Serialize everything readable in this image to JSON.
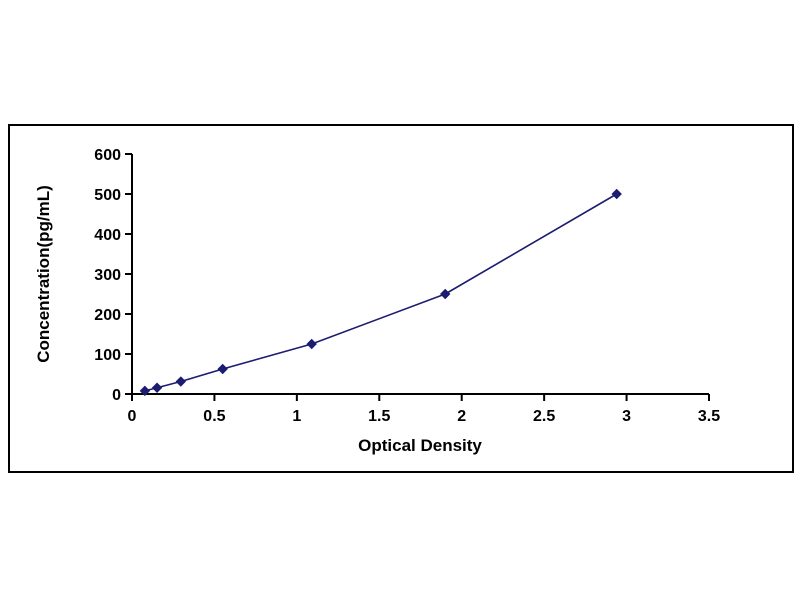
{
  "page": {
    "background": "#ffffff"
  },
  "chart_data": {
    "type": "line",
    "title": "",
    "xlabel": "Optical Density",
    "ylabel": "Concentration(pg/mL)",
    "series": [
      {
        "x": [
          0.078,
          0.152,
          0.296,
          0.55,
          1.09,
          1.9,
          2.94
        ],
        "y": [
          7.8,
          15.6,
          31.2,
          62.5,
          125,
          250,
          500
        ]
      }
    ],
    "xlim": [
      0,
      3.5
    ],
    "ylim": [
      0,
      600
    ],
    "xticks": {
      "values": [
        0,
        0.5,
        1,
        1.5,
        2,
        2.5,
        3,
        3.5
      ],
      "labels": [
        "0",
        "0.5",
        "1",
        "1.5",
        "2",
        "2.5",
        "3",
        "3.5"
      ]
    },
    "yticks": {
      "values": [
        0,
        100,
        200,
        300,
        400,
        500,
        600
      ],
      "labels": [
        "0",
        "100",
        "200",
        "300",
        "400",
        "500",
        "600"
      ]
    },
    "grid": false,
    "legend": null,
    "marker": "diamond",
    "line_color": "#1c1c70",
    "axis_color": "#000000"
  }
}
